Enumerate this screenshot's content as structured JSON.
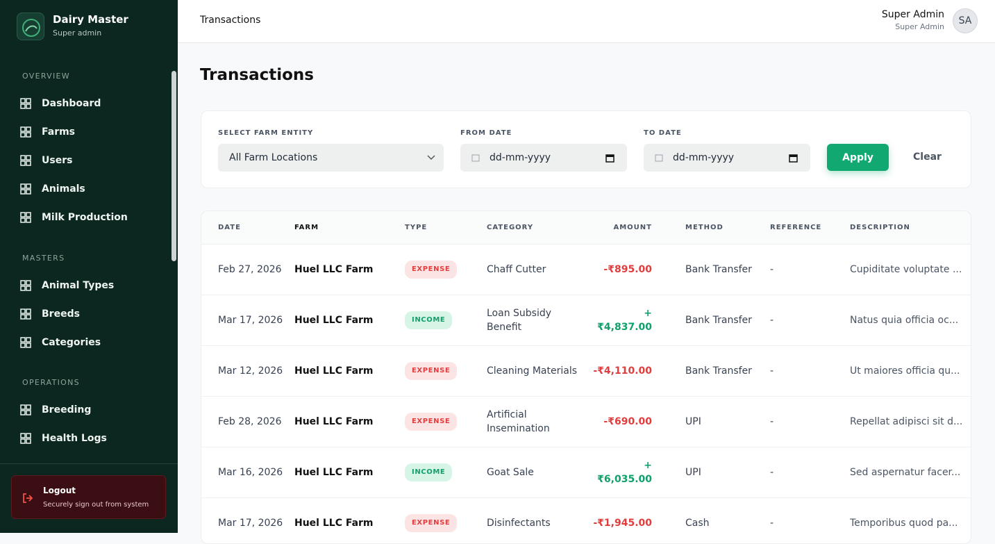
{
  "sidebar": {
    "brand": "Dairy Master",
    "role": "Super admin",
    "sections": [
      {
        "title": "OVERVIEW",
        "items": [
          "Dashboard",
          "Farms",
          "Users",
          "Animals",
          "Milk Production"
        ]
      },
      {
        "title": "MASTERS",
        "items": [
          "Animal Types",
          "Breeds",
          "Categories"
        ]
      },
      {
        "title": "OPERATIONS",
        "items": [
          "Breeding",
          "Health Logs"
        ]
      }
    ],
    "logout": {
      "title": "Logout",
      "subtitle": "Securely sign out from system"
    }
  },
  "header": {
    "breadcrumb": "Transactions",
    "user_name": "Super Admin",
    "user_role": "Super Admin",
    "avatar": "SA"
  },
  "page_title": "Transactions",
  "filters": {
    "farm_label": "SELECT FARM ENTITY",
    "farm_value": "All Farm Locations",
    "from_label": "FROM DATE",
    "from_placeholder": "dd-mm-yyyy",
    "to_label": "TO DATE",
    "to_placeholder": "dd-mm-yyyy",
    "apply": "Apply",
    "clear": "Clear"
  },
  "table": {
    "columns": [
      "DATE",
      "FARM",
      "TYPE",
      "CATEGORY",
      "AMOUNT",
      "METHOD",
      "REFERENCE",
      "DESCRIPTION"
    ],
    "rows": [
      {
        "color": "#e03e3e",
        "cells": [
          "Feb 27, 2026",
          "Huel LLC Farm",
          "EXPENSE",
          "Chaff Cutter",
          "-₹895.00",
          "Bank Transfer",
          "-",
          "Cupiditate voluptate ..."
        ]
      },
      {
        "color": "#12a06a",
        "cells": [
          "Mar 17, 2026",
          "Huel LLC Farm",
          "INCOME",
          "Loan Subsidy Benefit",
          "+ ₹4,837.00",
          "Bank Transfer",
          "-",
          "Natus quia officia oc..."
        ]
      },
      {
        "color": "#e03e3e",
        "cells": [
          "Mar 12, 2026",
          "Huel LLC Farm",
          "EXPENSE",
          "Cleaning Materials",
          "-₹4,110.00",
          "Bank Transfer",
          "-",
          "Ut maiores officia qu..."
        ]
      },
      {
        "color": "#e03e3e",
        "cells": [
          "Feb 28, 2026",
          "Huel LLC Farm",
          "EXPENSE",
          "Artificial Insemination",
          "-₹690.00",
          "UPI",
          "-",
          "Repellat adipisci sit d..."
        ]
      },
      {
        "color": "#12a06a",
        "cells": [
          "Mar 16, 2026",
          "Huel LLC Farm",
          "INCOME",
          "Goat Sale",
          "+ ₹6,035.00",
          "UPI",
          "-",
          "Sed aspernatur facer..."
        ]
      },
      {
        "color": "#e03e3e",
        "cells": [
          "Mar 17, 2026",
          "Huel LLC Farm",
          "EXPENSE",
          "Disinfectants",
          "-₹1,945.00",
          "Cash",
          "-",
          "Temporibus quod pa..."
        ]
      }
    ]
  }
}
